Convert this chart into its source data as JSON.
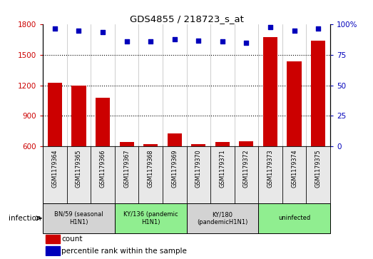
{
  "title": "GDS4855 / 218723_s_at",
  "samples": [
    "GSM1179364",
    "GSM1179365",
    "GSM1179366",
    "GSM1179367",
    "GSM1179368",
    "GSM1179369",
    "GSM1179370",
    "GSM1179371",
    "GSM1179372",
    "GSM1179373",
    "GSM1179374",
    "GSM1179375"
  ],
  "counts": [
    1230,
    1200,
    1080,
    640,
    620,
    730,
    625,
    645,
    650,
    1680,
    1440,
    1640
  ],
  "percentiles": [
    97,
    95,
    94,
    86,
    86,
    88,
    87,
    86,
    85,
    98,
    95,
    97
  ],
  "ylim_left": [
    600,
    1800
  ],
  "ylim_right": [
    0,
    100
  ],
  "yticks_left": [
    600,
    900,
    1200,
    1500,
    1800
  ],
  "yticks_right": [
    0,
    25,
    50,
    75,
    100
  ],
  "bar_color": "#cc0000",
  "dot_color": "#0000bb",
  "bg_color": "#ffffff",
  "groups": [
    {
      "label": "BN/59 (seasonal\nH1N1)",
      "start": 0,
      "end": 3,
      "color": "#d3d3d3"
    },
    {
      "label": "KY/136 (pandemic\nH1N1)",
      "start": 3,
      "end": 6,
      "color": "#90ee90"
    },
    {
      "label": "KY/180\n(pandemicH1N1)",
      "start": 6,
      "end": 9,
      "color": "#d3d3d3"
    },
    {
      "label": "uninfected",
      "start": 9,
      "end": 12,
      "color": "#90ee90"
    }
  ],
  "infection_label": "infection",
  "legend_count": "count",
  "legend_percentile": "percentile rank within the sample",
  "bar_width": 0.6
}
